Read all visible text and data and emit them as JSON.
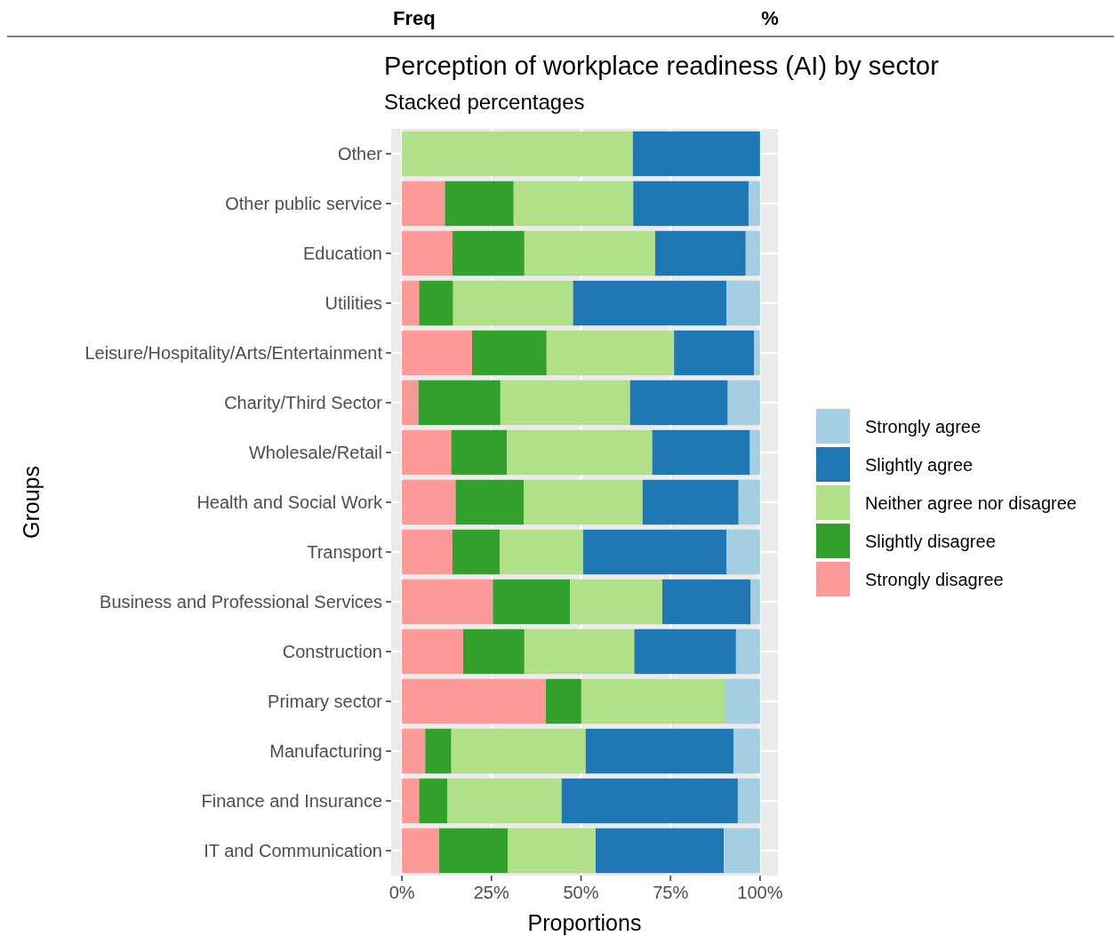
{
  "chart_data": {
    "type": "bar",
    "orientation": "horizontal",
    "stacked": true,
    "title": "Perception of workplace readiness (AI) by sector",
    "subtitle": "Stacked percentages",
    "xlabel": "Proportions",
    "ylabel": "Groups",
    "annotations": [
      "Freq",
      "%"
    ],
    "categories": [
      "Other",
      "Other public service",
      "Education",
      "Utilities",
      "Leisure/Hospitality/Arts/Entertainment",
      "Charity/Third Sector",
      "Wholesale/Retail",
      "Health and Social Work",
      "Transport",
      "Business and Professional Services",
      "Construction",
      "Primary sector",
      "Manufacturing",
      "Finance and Insurance",
      "IT and Communication"
    ],
    "series": [
      {
        "name": "Strongly disagree",
        "color": "#fb9a99",
        "values": [
          0,
          12.0,
          14.1,
          4.8,
          19.6,
          4.6,
          13.8,
          15.0,
          14.1,
          25.4,
          17.1,
          40.2,
          6.5,
          4.8,
          10.4
        ]
      },
      {
        "name": "Slightly disagree",
        "color": "#33a02c",
        "values": [
          0,
          19.2,
          20.1,
          9.5,
          20.8,
          22.9,
          15.5,
          19.0,
          13.2,
          21.5,
          17.1,
          9.9,
          7.3,
          7.9,
          19.2
        ]
      },
      {
        "name": "Neither agree nor disagree",
        "color": "#b2df8a",
        "values": [
          64.5,
          33.4,
          36.5,
          33.5,
          35.6,
          36.2,
          40.6,
          33.2,
          23.3,
          25.8,
          30.7,
          40.0,
          37.5,
          31.9,
          24.5
        ]
      },
      {
        "name": "Slightly agree",
        "color": "#1f78b4",
        "values": [
          35.5,
          32.2,
          25.3,
          42.8,
          22.3,
          27.3,
          27.3,
          26.8,
          40.1,
          24.7,
          28.4,
          0,
          41.3,
          49.2,
          35.8
        ]
      },
      {
        "name": "Strongly agree",
        "color": "#a6cee3",
        "values": [
          0,
          3.2,
          4.0,
          9.4,
          1.7,
          9.0,
          2.8,
          6.0,
          9.3,
          2.6,
          6.7,
          9.9,
          7.4,
          6.2,
          10.1
        ]
      }
    ],
    "xlim": [
      -3,
      105
    ],
    "xticks": [
      {
        "value": 0,
        "label": "0%"
      },
      {
        "value": 25,
        "label": "25%"
      },
      {
        "value": 50,
        "label": "50%"
      },
      {
        "value": 75,
        "label": "75%"
      },
      {
        "value": 100,
        "label": "100%"
      }
    ],
    "grid": true,
    "legend": "right"
  }
}
